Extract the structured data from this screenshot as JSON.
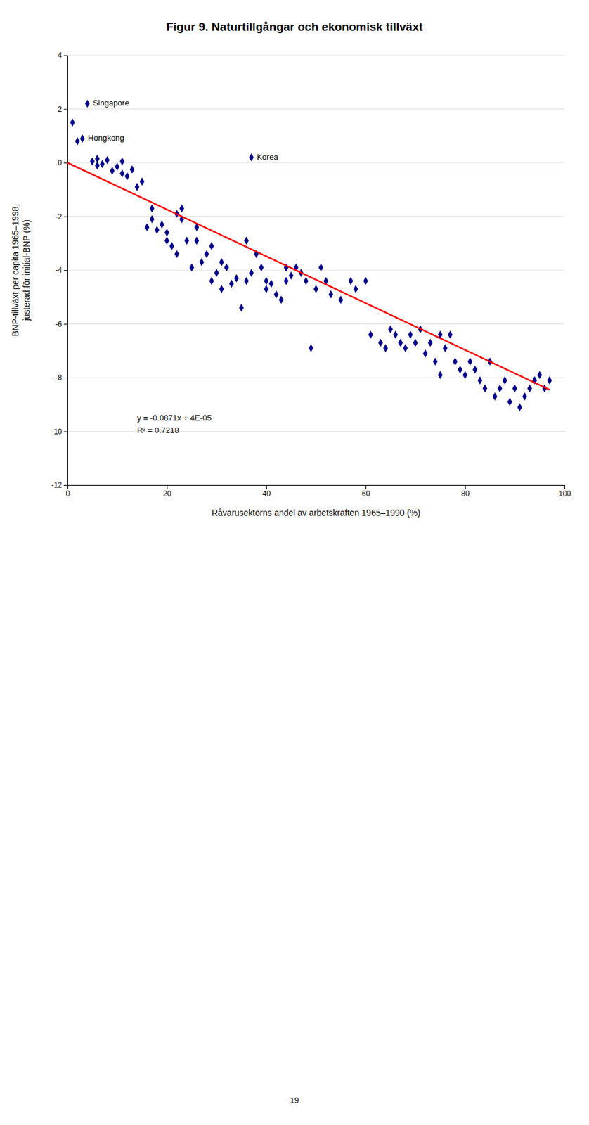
{
  "chart_data": {
    "type": "scatter",
    "title": "Figur 9. Naturtillgångar och ekonomisk tillväxt",
    "x_label": "Råvarusektorns andel av arbetskraften 1965–1990 (%)",
    "y_label": "BNP-tillväxt per capita 1965–1998,\njusterad för initial-BNP (%)",
    "xlim": [
      0,
      100
    ],
    "ylim": [
      -12,
      4
    ],
    "xticks": [
      0,
      20,
      40,
      60,
      80,
      100
    ],
    "yticks": [
      4,
      2,
      0,
      -2,
      -4,
      -6,
      -8,
      -10,
      -12
    ],
    "grid": "y",
    "series": [
      {
        "type": "scatter",
        "color": "#00008B",
        "marker": "diamond",
        "x": [
          1,
          2,
          3,
          4,
          5,
          6,
          6,
          7,
          8,
          9,
          10,
          11,
          11,
          12,
          13,
          14,
          15,
          16,
          17,
          17,
          18,
          19,
          20,
          20,
          21,
          22,
          22,
          23,
          23,
          24,
          25,
          26,
          26,
          27,
          28,
          29,
          29,
          30,
          31,
          31,
          32,
          33,
          34,
          35,
          36,
          36,
          37,
          37,
          38,
          39,
          40,
          40,
          41,
          42,
          43,
          44,
          44,
          45,
          46,
          47,
          48,
          49,
          50,
          51,
          52,
          53,
          55,
          57,
          58,
          60,
          61,
          63,
          64,
          65,
          66,
          67,
          68,
          69,
          70,
          71,
          72,
          73,
          74,
          75,
          75,
          76,
          77,
          78,
          79,
          80,
          81,
          82,
          83,
          84,
          85,
          86,
          87,
          88,
          89,
          90,
          91,
          92,
          93,
          94,
          95,
          96,
          97
        ],
        "values": [
          1.5,
          0.8,
          0.9,
          2.2,
          0.05,
          -0.1,
          0.15,
          -0.05,
          0.1,
          -0.3,
          -0.15,
          0.05,
          -0.4,
          -0.5,
          -0.25,
          -0.9,
          -0.7,
          -2.4,
          -2.1,
          -1.7,
          -2.5,
          -2.3,
          -2.9,
          -2.6,
          -3.1,
          -1.9,
          -3.4,
          -1.7,
          -2.1,
          -2.9,
          -3.9,
          -2.9,
          -2.4,
          -3.7,
          -3.4,
          -3.1,
          -4.4,
          -4.1,
          -3.7,
          -4.7,
          -3.9,
          -4.5,
          -4.3,
          -5.4,
          -2.9,
          -4.4,
          0.2,
          -4.1,
          -3.4,
          -3.9,
          -4.4,
          -4.7,
          -4.5,
          -4.9,
          -5.1,
          -3.9,
          -4.4,
          -4.2,
          -3.9,
          -4.1,
          -4.4,
          -6.9,
          -4.7,
          -3.9,
          -4.4,
          -4.9,
          -5.1,
          -4.4,
          -4.7,
          -4.4,
          -6.4,
          -6.7,
          -6.9,
          -6.2,
          -6.4,
          -6.7,
          -6.9,
          -6.4,
          -6.7,
          -6.2,
          -7.1,
          -6.7,
          -7.4,
          -6.4,
          -7.9,
          -6.9,
          -6.4,
          -7.4,
          -7.7,
          -7.9,
          -7.4,
          -7.7,
          -8.1,
          -8.4,
          -7.4,
          -8.7,
          -8.4,
          -8.1,
          -8.9,
          -8.4,
          -9.1,
          -8.7,
          -8.4,
          -8.1,
          -7.9,
          -8.4,
          -8.1
        ]
      },
      {
        "type": "line",
        "color": "#FF0000",
        "line_style": "solid",
        "x": [
          0,
          97
        ],
        "values": [
          4e-05,
          -8.44866
        ]
      }
    ],
    "annotations": [
      {
        "text": "Singapore",
        "x": 4,
        "y": 2.2
      },
      {
        "text": "Hongkong",
        "x": 3,
        "y": 0.9
      },
      {
        "text": "Korea",
        "x": 37,
        "y": 0.2
      },
      {
        "text": "y = -0.0871x + 4E-05"
      },
      {
        "text": "R² = 0.7218"
      }
    ],
    "page_number": "19"
  }
}
